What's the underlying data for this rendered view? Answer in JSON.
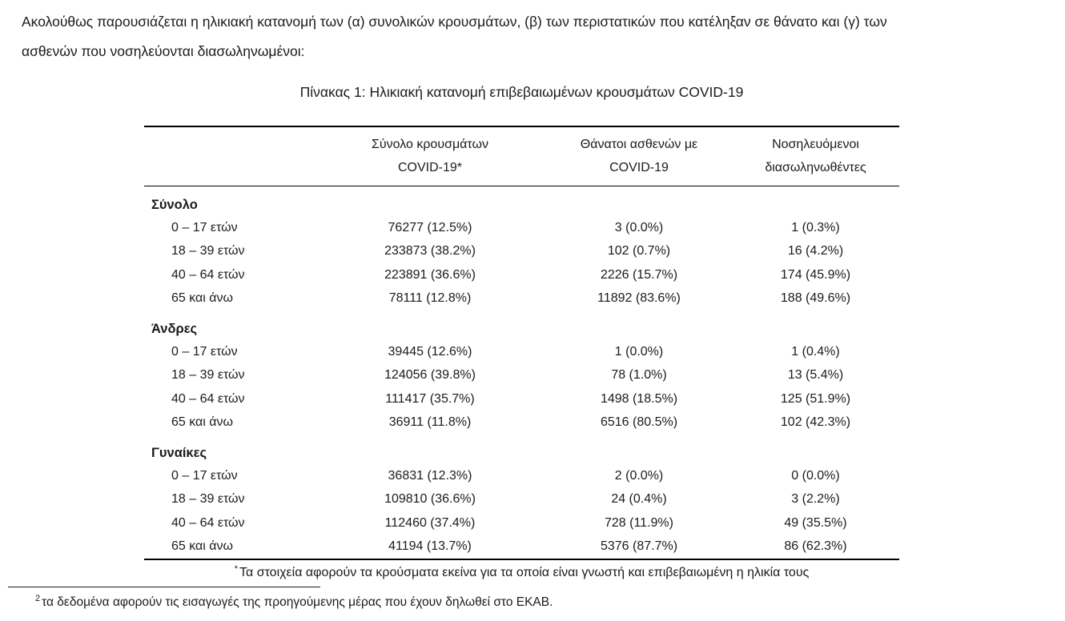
{
  "intro": {
    "line1": "Ακολούθως παρουσιάζεται η ηλικιακή κατανομή των (α) συνολικών κρουσμάτων, (β) των περιστατικών που κατέληξαν σε θάνατο και (γ) των",
    "line2": "ασθενών που νοσηλεύονται διασωληνωμένοι:"
  },
  "table": {
    "title": "Πίνακας 1: Ηλικιακή κατανομή επιβεβαιωμένων κρουσμάτων COVID-19",
    "columns": [
      {
        "line1": "Σύνολο κρουσμάτων",
        "line2": "COVID-19*"
      },
      {
        "line1": "Θάνατοι ασθενών με",
        "line2": "COVID-19"
      },
      {
        "line1": "Νοσηλευόμενοι",
        "line2": "διασωληνωθέντες"
      }
    ],
    "sections": [
      {
        "label": "Σύνολο",
        "rows": [
          {
            "age": "0 – 17 ετών",
            "cases": "76277 (12.5%)",
            "deaths": "3 (0.0%)",
            "intubated": "1 (0.3%)"
          },
          {
            "age": "18 – 39 ετών",
            "cases": "233873 (38.2%)",
            "deaths": "102 (0.7%)",
            "intubated": "16 (4.2%)"
          },
          {
            "age": "40 – 64 ετών",
            "cases": "223891 (36.6%)",
            "deaths": "2226 (15.7%)",
            "intubated": "174 (45.9%)"
          },
          {
            "age": "65 και άνω",
            "cases": "78111 (12.8%)",
            "deaths": "11892 (83.6%)",
            "intubated": "188 (49.6%)"
          }
        ]
      },
      {
        "label": "Άνδρες",
        "rows": [
          {
            "age": "0 – 17 ετών",
            "cases": "39445 (12.6%)",
            "deaths": "1 (0.0%)",
            "intubated": "1 (0.4%)"
          },
          {
            "age": "18 – 39 ετών",
            "cases": "124056 (39.8%)",
            "deaths": "78 (1.0%)",
            "intubated": "13 (5.4%)"
          },
          {
            "age": "40 – 64 ετών",
            "cases": "111417 (35.7%)",
            "deaths": "1498 (18.5%)",
            "intubated": "125 (51.9%)"
          },
          {
            "age": "65 και άνω",
            "cases": "36911 (11.8%)",
            "deaths": "6516 (80.5%)",
            "intubated": "102 (42.3%)"
          }
        ]
      },
      {
        "label": "Γυναίκες",
        "rows": [
          {
            "age": "0 – 17 ετών",
            "cases": "36831 (12.3%)",
            "deaths": "2 (0.0%)",
            "intubated": "0 (0.0%)"
          },
          {
            "age": "18 – 39 ετών",
            "cases": "109810 (36.6%)",
            "deaths": "24 (0.4%)",
            "intubated": "3 (2.2%)"
          },
          {
            "age": "40 – 64 ετών",
            "cases": "112460 (37.4%)",
            "deaths": "728 (11.9%)",
            "intubated": "49 (35.5%)"
          },
          {
            "age": "65 και άνω",
            "cases": "41194 (13.7%)",
            "deaths": "5376 (87.7%)",
            "intubated": "86 (62.3%)"
          }
        ]
      }
    ],
    "footnote_marker": "*",
    "footnote_text": "Τα στοιχεία αφορούν τα κρούσματα εκείνα για τα οποία είναι γνωστή και επιβεβαιωμένη η ηλικία τους"
  },
  "page_footnote": {
    "marker": "2",
    "text": "τα δεδομένα αφορούν τις εισαγωγές της προηγούμενης μέρας που έχουν δηλωθεί στο ΕΚΑΒ."
  },
  "colors": {
    "text": "#1b1b1b",
    "rule": "#000000",
    "background": "#ffffff"
  }
}
